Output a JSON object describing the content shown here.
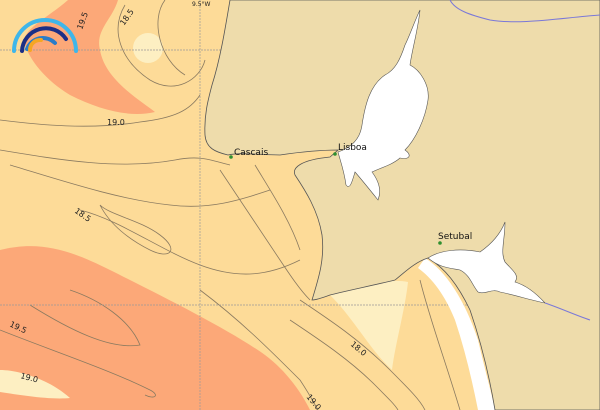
{
  "colors": {
    "land": "#eedcab",
    "sea_base": "#fddb98",
    "sea_warm": "#fca878",
    "sea_cool": "#fdefc2",
    "estuary": "#ffffff",
    "river": "#7a78d8",
    "place_dot": "#2f8f2f",
    "logo_light": "#3fb6ea",
    "logo_dark": "#1c2f86",
    "logo_mid": "#2a7cc8",
    "logo_accent": "#f5a623"
  },
  "map": {
    "grid_label": "9.5°W",
    "contour_labels": [
      "19.5",
      "18.5",
      "19.0",
      "18.5",
      "19.5",
      "19.0",
      "18.0",
      "19.0"
    ],
    "places": [
      {
        "name": "Cascais"
      },
      {
        "name": "Lisboa"
      },
      {
        "name": "Setubal"
      }
    ]
  },
  "logo": {
    "icon": "wave-arcs-logo"
  }
}
